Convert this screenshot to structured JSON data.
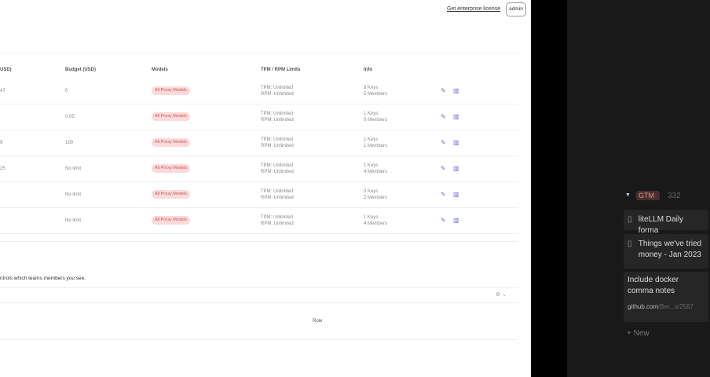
{
  "header": {
    "license_link": "Get enterprise license",
    "user_button": "admin"
  },
  "table": {
    "columns": [
      "USD)",
      "Budget (USD)",
      "Models",
      "TPM / RPM Limits",
      "Info"
    ],
    "rows": [
      {
        "spend": "47",
        "budget": "0",
        "models": "All Proxy Models",
        "tpm": "TPM: Unlimited",
        "rpm": "RPM: Unlimited",
        "keys": "8 Keys",
        "members": "5 Members"
      },
      {
        "spend": "",
        "budget": "0.05",
        "models": "All Proxy Models",
        "tpm": "TPM: Unlimited",
        "rpm": "RPM: Unlimited",
        "keys": "1 Keys",
        "members": "0 Members"
      },
      {
        "spend": "9",
        "budget": "100",
        "models": "All Proxy Models",
        "tpm": "TPM: Unlimited",
        "rpm": "RPM: Unlimited",
        "keys": "1 Keys",
        "members": "1 Members"
      },
      {
        "spend": "25",
        "budget": "No limit",
        "models": "All Proxy Models",
        "tpm": "TPM: Unlimited",
        "rpm": "RPM: Unlimited",
        "keys": "1 Keys",
        "members": "4 Members"
      },
      {
        "spend": "",
        "budget": "No limit",
        "models": "All Proxy Models",
        "tpm": "TPM: Unlimited",
        "rpm": "RPM: Unlimited",
        "keys": "0 Keys",
        "members": "2 Members"
      },
      {
        "spend": "",
        "budget": "No limit",
        "models": "All Proxy Models",
        "tpm": "TPM: Unlimited",
        "rpm": "RPM: Unlimited",
        "keys": "1 Keys",
        "members": "4 Members"
      }
    ]
  },
  "members_section": {
    "description": "ntrols which teams members you see.",
    "role_header": "Role"
  },
  "notion": {
    "group_tag": "GTM",
    "group_count": "332",
    "cards": [
      {
        "title": "liteLLM Daily forma",
        "icon": "page-icon"
      },
      {
        "title": "Things we've tried money - Jan 2023",
        "icon": "page-icon"
      },
      {
        "title": "Include docker comma notes",
        "link": "github.com",
        "link_rest": "/Ber...s/2587"
      }
    ],
    "new_label": "+ New"
  },
  "colors": {
    "badge_bg": "#fbdada",
    "badge_text": "#c55",
    "action_icon": "#6c6cd8",
    "panel_bg": "#191919"
  }
}
